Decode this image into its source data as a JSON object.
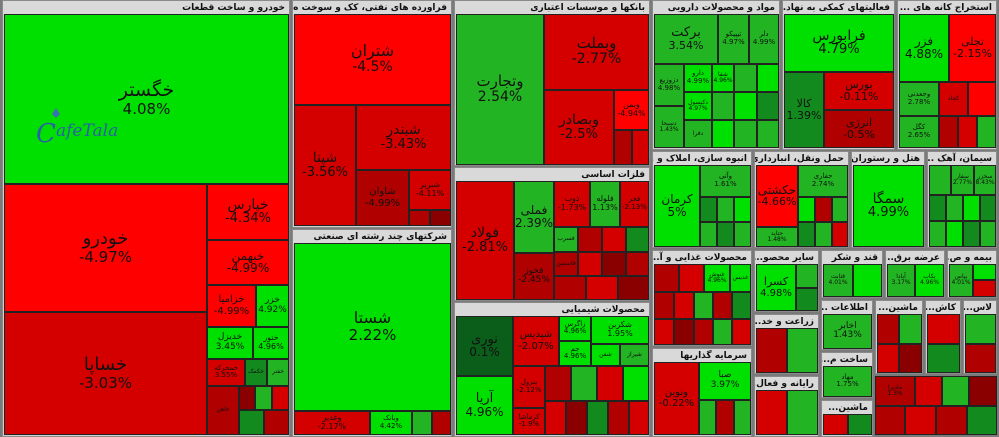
{
  "sectors": [
    {
      "title": "خودرو و ساخت قطعات"
    },
    {
      "title": "فراورده های نفتی، کک و سوخت ه..."
    },
    {
      "title": "شرکتهای چند رشته ای صنعتی"
    },
    {
      "title": "بانکها و موسسات اعتباری"
    },
    {
      "title": "فلزات اساسی"
    },
    {
      "title": "محصولات شیمیایی"
    },
    {
      "title": "مواد و محصولات دارویی"
    },
    {
      "title": "فعالیتهای کمکی به نهاد..."
    },
    {
      "title": "استخراج کانه های ..."
    },
    {
      "title": "انبوه سازی، املاک و ..."
    },
    {
      "title": "حمل ونقل، انبارداری ..."
    },
    {
      "title": "هتل و رستوران"
    },
    {
      "title": "سیمان، آهک ..."
    },
    {
      "title": "محصولات غذایی و آ..."
    },
    {
      "title": "سایر محصو..."
    },
    {
      "title": "قند و شکر"
    },
    {
      "title": "عرضه برق..."
    },
    {
      "title": "بیمه و ص..."
    },
    {
      "title": "زراعت و خد..."
    },
    {
      "title": "اطلاعات ..."
    },
    {
      "title": "ماشین..."
    },
    {
      "title": "کاش..."
    },
    {
      "title": "سرمایه گذاریها"
    },
    {
      "title": "رایانه و فعال..."
    },
    {
      "title": "ساخت م..."
    },
    {
      "title": "ماشین..."
    },
    {
      "title": "لاس..."
    }
  ],
  "tiles": [
    {
      "name": "خگستر",
      "pct": "4.08%"
    },
    {
      "name": "خودرو",
      "pct": "-4.97%"
    },
    {
      "name": "خپارس",
      "pct": "-4.34%"
    },
    {
      "name": "خبهمن",
      "pct": "-4.99%"
    },
    {
      "name": "خزامیا",
      "pct": "-4.99%"
    },
    {
      "name": "خزر",
      "pct": "4.92%"
    },
    {
      "name": "خساپا",
      "pct": "-3.03%"
    },
    {
      "name": "خدیزل",
      "pct": "3.45%"
    },
    {
      "name": "ختور",
      "pct": "4.96%"
    },
    {
      "name": "خمحرکه",
      "pct": "3.55%"
    },
    {
      "name": "خکمک",
      "pct": ""
    },
    {
      "name": "خفنر",
      "pct": ""
    },
    {
      "name": "خاهن",
      "pct": ""
    },
    {
      "name": "شتران",
      "pct": "-4.5%"
    },
    {
      "name": "شپنا",
      "pct": "-3.56%"
    },
    {
      "name": "شبندر",
      "pct": "-3.43%"
    },
    {
      "name": "شاوان",
      "pct": "-4.99%"
    },
    {
      "name": "شبریز",
      "pct": "-4.11%"
    },
    {
      "name": "شستا",
      "pct": "2.22%"
    },
    {
      "name": "وغدیر",
      "pct": "-2.17%"
    },
    {
      "name": "وبانک",
      "pct": "4.42%"
    },
    {
      "name": "وتجارت",
      "pct": "2.54%"
    },
    {
      "name": "وبملت",
      "pct": "-2.77%"
    },
    {
      "name": "وبصادر",
      "pct": "-2.5%"
    },
    {
      "name": "وبمن",
      "pct": "-4.94%"
    },
    {
      "name": "فولاد",
      "pct": "-2.81%"
    },
    {
      "name": "فملی",
      "pct": "2.39%"
    },
    {
      "name": "فخوز",
      "pct": "-2.45%"
    },
    {
      "name": "ذوب",
      "pct": "-1.73%"
    },
    {
      "name": "فلوله",
      "pct": "1.13%"
    },
    {
      "name": "فجر",
      "pct": "-2.13%"
    },
    {
      "name": "فسرب",
      "pct": ""
    },
    {
      "name": "فاسمین",
      "pct": ""
    },
    {
      "name": "شپدیس",
      "pct": "-2.07%"
    },
    {
      "name": "زاگرس",
      "pct": "4.96%"
    },
    {
      "name": "جم",
      "pct": "4.96%"
    },
    {
      "name": "شکربن",
      "pct": "1.95%"
    },
    {
      "name": "نوری",
      "pct": "0.1%"
    },
    {
      "name": "آریا",
      "pct": "4.96%"
    },
    {
      "name": "پترول",
      "pct": "-2.12%"
    },
    {
      "name": "کرماشا",
      "pct": "-1.9%"
    },
    {
      "name": "شفن",
      "pct": ""
    },
    {
      "name": "شیراز",
      "pct": ""
    },
    {
      "name": "برکت",
      "pct": "3.54%"
    },
    {
      "name": "تیپیکو",
      "pct": "4.97%"
    },
    {
      "name": "دلر",
      "pct": "4.99%"
    },
    {
      "name": "دزوزیع",
      "pct": "4.98%"
    },
    {
      "name": "دارو",
      "pct": "4.99%"
    },
    {
      "name": "دکیسول",
      "pct": "4.97%"
    },
    {
      "name": "دسبحا",
      "pct": "1.43%"
    },
    {
      "name": "دفرا",
      "pct": ""
    },
    {
      "name": "شفا",
      "pct": "4.96%"
    },
    {
      "name": "فرابورس",
      "pct": "4.79%"
    },
    {
      "name": "کالا",
      "pct": "1.39%"
    },
    {
      "name": "بورس",
      "pct": "-0.11%"
    },
    {
      "name": "انرژی",
      "pct": "-0.5%"
    },
    {
      "name": "فزر",
      "pct": "4.88%"
    },
    {
      "name": "کچاد",
      "pct": ""
    },
    {
      "name": "وجعدنی",
      "pct": "2.78%"
    },
    {
      "name": "کگل",
      "pct": "2.65%"
    },
    {
      "name": "تجلی",
      "pct": "-2.15%"
    },
    {
      "name": "کرمان",
      "pct": "5%"
    },
    {
      "name": "وآتی",
      "pct": "1.61%"
    },
    {
      "name": "حکشتی",
      "pct": "-4.66%"
    },
    {
      "name": "حفاری",
      "pct": "2.74%"
    },
    {
      "name": "حتاید",
      "pct": "1.48%"
    },
    {
      "name": "سمگا",
      "pct": "4.99%"
    },
    {
      "name": "سفار",
      "pct": "2.77%"
    },
    {
      "name": "سخزر",
      "pct": "8.43%"
    },
    {
      "name": "کسرا",
      "pct": "4.98%"
    },
    {
      "name": "غنوش",
      "pct": "4.96%"
    },
    {
      "name": "غدیس",
      "pct": ""
    },
    {
      "name": "قثابت",
      "pct": "4.01%"
    },
    {
      "name": "بکاب",
      "pct": "4.96%"
    },
    {
      "name": "آبادا",
      "pct": "3.17%"
    },
    {
      "name": "بپاس",
      "pct": "4.01%"
    },
    {
      "name": "اخابر",
      "pct": "1.43%"
    },
    {
      "name": "ونوین",
      "pct": "-0.22%"
    },
    {
      "name": "صبا",
      "pct": "3.97%"
    },
    {
      "name": "مهاد",
      "pct": "1.75%"
    },
    {
      "name": "مادیرا",
      "pct": "1.3%"
    }
  ]
}
